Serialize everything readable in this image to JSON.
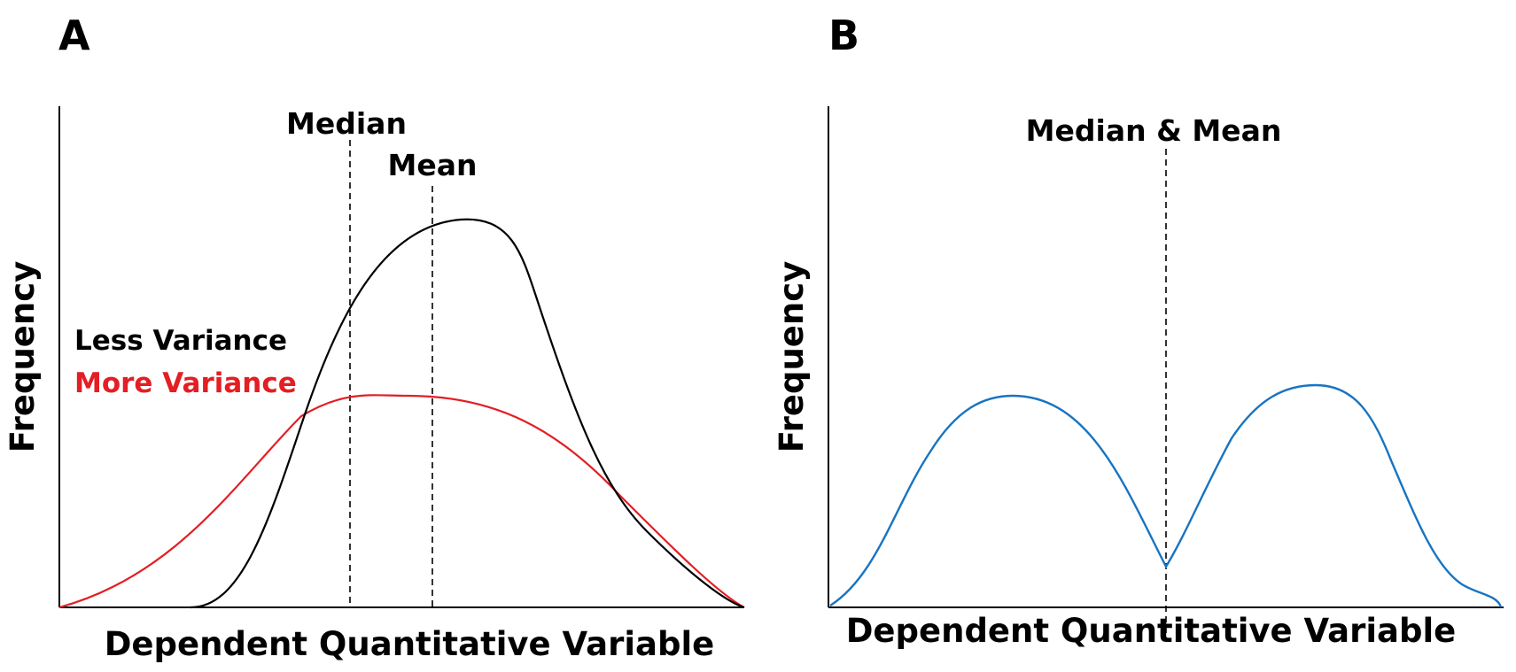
{
  "panels": {
    "a": {
      "letter": "A",
      "ylabel": "Frequency",
      "xlabel": "Dependent Quantitative Variable",
      "markers": {
        "median": "Median",
        "mean": "Mean"
      },
      "legend": {
        "less": "Less Variance",
        "more": "More Variance"
      },
      "colors": {
        "less": "#000000",
        "more": "#e31e24"
      }
    },
    "b": {
      "letter": "B",
      "ylabel": "Frequency",
      "xlabel": "Dependent Quantitative Variable",
      "markers": {
        "median_mean": "Median & Mean"
      },
      "colors": {
        "curve": "#1874c1"
      }
    }
  }
}
